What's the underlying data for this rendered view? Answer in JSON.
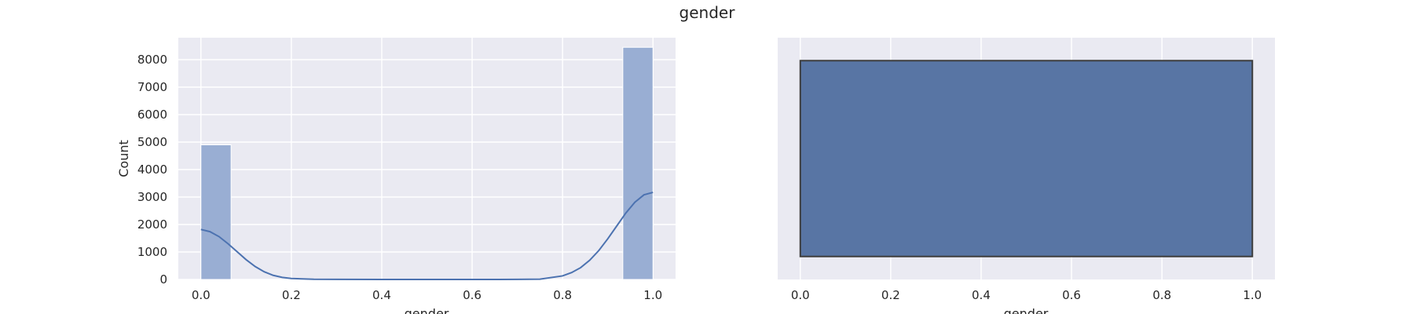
{
  "figure": {
    "title": "gender"
  },
  "chart_data": [
    {
      "type": "bar",
      "subtype": "histogram-with-kde",
      "xlabel": "gender",
      "ylabel": "Count",
      "xlim": [
        -0.05,
        1.05
      ],
      "ylim": [
        0,
        8800
      ],
      "xticks": [
        0.0,
        0.2,
        0.4,
        0.6,
        0.8,
        1.0
      ],
      "xtick_labels": [
        "0.0",
        "0.2",
        "0.4",
        "0.6",
        "0.8",
        "1.0"
      ],
      "yticks": [
        0,
        1000,
        2000,
        3000,
        4000,
        5000,
        6000,
        7000,
        8000
      ],
      "ytick_labels": [
        "0",
        "1000",
        "2000",
        "3000",
        "4000",
        "5000",
        "6000",
        "7000",
        "8000"
      ],
      "grid": true,
      "bins": [
        {
          "x0": 0.0,
          "x1": 0.0667,
          "count": 4900
        },
        {
          "x0": 0.9333,
          "x1": 1.0,
          "count": 8450
        }
      ],
      "kde": {
        "x": [
          0.0,
          0.02,
          0.04,
          0.06,
          0.08,
          0.1,
          0.12,
          0.14,
          0.16,
          0.18,
          0.2,
          0.25,
          0.3,
          0.4,
          0.5,
          0.6,
          0.7,
          0.75,
          0.8,
          0.82,
          0.84,
          0.86,
          0.88,
          0.9,
          0.92,
          0.94,
          0.96,
          0.98,
          1.0
        ],
        "y": [
          1820,
          1740,
          1560,
          1300,
          1010,
          720,
          470,
          280,
          150,
          75,
          35,
          8,
          2,
          0,
          0,
          0,
          2,
          10,
          130,
          250,
          430,
          700,
          1050,
          1480,
          1950,
          2420,
          2810,
          3080,
          3170
        ]
      },
      "colors": {
        "bar": "#99aed3",
        "kde": "#4c72b0",
        "background": "#eaeaf2",
        "grid": "#ffffff"
      }
    },
    {
      "type": "box",
      "xlabel": "gender",
      "xlim": [
        -0.05,
        1.05
      ],
      "xticks": [
        0.0,
        0.2,
        0.4,
        0.6,
        0.8,
        1.0
      ],
      "xtick_labels": [
        "0.0",
        "0.2",
        "0.4",
        "0.6",
        "0.8",
        "1.0"
      ],
      "box": {
        "min": 0.0,
        "q1": 0.0,
        "median": 1.0,
        "q3": 1.0,
        "max": 1.0
      },
      "grid": true,
      "colors": {
        "box": "#5875a4",
        "edge": "#3d3d3d",
        "background": "#eaeaf2",
        "grid": "#ffffff"
      }
    }
  ]
}
